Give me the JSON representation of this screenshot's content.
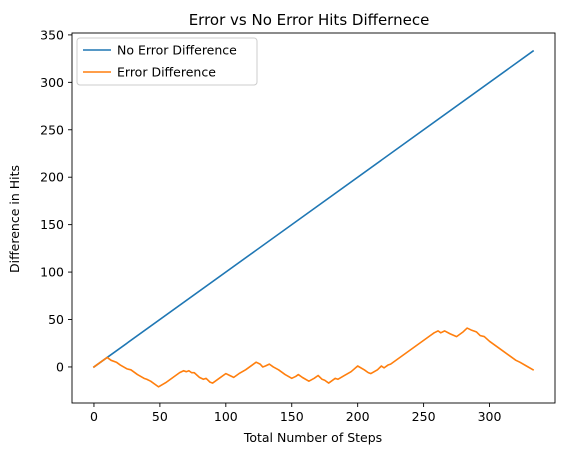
{
  "chart_data": {
    "type": "line",
    "title": "Error vs No Error Hits Differnece",
    "xlabel": "Total Number of Steps",
    "ylabel": "Difference in Hits",
    "xlim": [
      -16.65,
      349.65
    ],
    "ylim": [
      -38.0,
      352.0
    ],
    "xticks": [
      0,
      50,
      100,
      150,
      200,
      250,
      300
    ],
    "yticks": [
      0,
      50,
      100,
      150,
      200,
      250,
      300,
      350
    ],
    "grid": false,
    "legend_position": "top-left",
    "series": [
      {
        "name": "No Error Difference",
        "color": "#1f77b4",
        "x": [
          0,
          333
        ],
        "y": [
          0,
          333
        ]
      },
      {
        "name": "Error Difference",
        "color": "#ff7f0e",
        "x": [
          0,
          10,
          13,
          17,
          20,
          25,
          28,
          30,
          33,
          38,
          40,
          43,
          49,
          55,
          60,
          65,
          68,
          70,
          72,
          74,
          76,
          80,
          83,
          85,
          88,
          90,
          95,
          100,
          103,
          106,
          110,
          115,
          120,
          123,
          126,
          128,
          130,
          133,
          136,
          140,
          145,
          150,
          153,
          155,
          158,
          163,
          167,
          170,
          173,
          175,
          178,
          180,
          183,
          185,
          190,
          195,
          200,
          205,
          208,
          210,
          215,
          218,
          220,
          223,
          225,
          230,
          235,
          240,
          245,
          250,
          255,
          258,
          261,
          263,
          266,
          270,
          275,
          280,
          283,
          286,
          290,
          293,
          296,
          300,
          305,
          310,
          315,
          320,
          323,
          328,
          333
        ],
        "y": [
          0,
          10,
          7,
          5,
          2,
          -2,
          -3,
          -5,
          -8,
          -12,
          -13,
          -15,
          -21,
          -16,
          -11,
          -6,
          -4,
          -5,
          -4,
          -6,
          -6,
          -11,
          -13,
          -12,
          -16,
          -17,
          -12,
          -7,
          -9,
          -11,
          -7,
          -3,
          2,
          5,
          3,
          0,
          1,
          3,
          0,
          -3,
          -8,
          -12,
          -10,
          -8,
          -11,
          -15,
          -12,
          -9,
          -13,
          -14,
          -17,
          -15,
          -12,
          -13,
          -9,
          -5,
          1,
          -3,
          -6,
          -7,
          -3,
          1,
          -1,
          2,
          3,
          8,
          13,
          18,
          23,
          28,
          33,
          36,
          38,
          36,
          38,
          35,
          32,
          37,
          41,
          39,
          37,
          33,
          32,
          27,
          22,
          17,
          12,
          7,
          5,
          1,
          -3
        ]
      }
    ]
  }
}
